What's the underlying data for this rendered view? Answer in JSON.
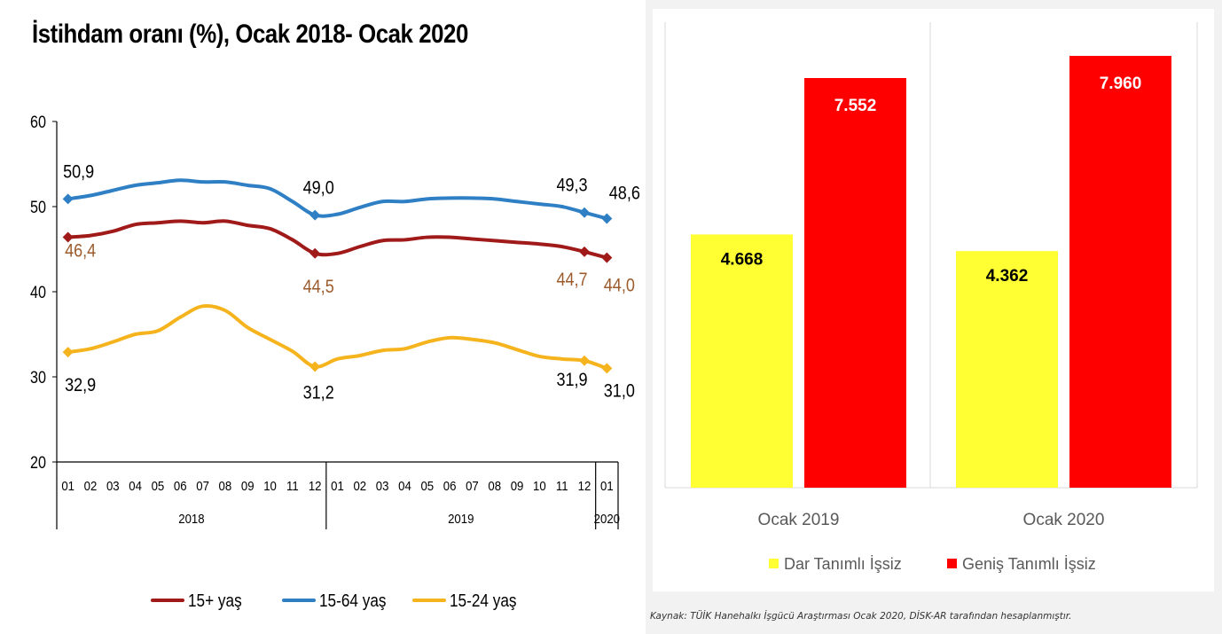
{
  "chart_data": [
    {
      "type": "line",
      "title": "İstihdam oranı (%), Ocak 2018- Ocak 2020",
      "ylim": [
        20,
        60
      ],
      "yticks": [
        "20",
        "30",
        "40",
        "50",
        "60"
      ],
      "x": [
        "01",
        "02",
        "03",
        "04",
        "05",
        "06",
        "07",
        "08",
        "09",
        "10",
        "11",
        "12",
        "01",
        "02",
        "03",
        "04",
        "05",
        "06",
        "07",
        "08",
        "09",
        "10",
        "11",
        "12",
        "01"
      ],
      "year_groups": [
        {
          "label": "2018"
        },
        {
          "label": "2019"
        },
        {
          "label": "2020"
        }
      ],
      "grid": false,
      "legend_position": "bottom",
      "series": [
        {
          "name": "15+ yaş",
          "color": "#a01a1a",
          "label_color": "#9c5b2c",
          "values": [
            46.4,
            46.6,
            47.1,
            47.9,
            48.1,
            48.3,
            48.1,
            48.3,
            47.8,
            47.4,
            46.1,
            44.5,
            44.5,
            45.3,
            46.0,
            46.1,
            46.4,
            46.4,
            46.2,
            46.0,
            45.8,
            45.6,
            45.3,
            44.7,
            44.0
          ],
          "labels": [
            {
              "index": 0,
              "text": "46,4"
            },
            {
              "index": 11,
              "text": "44,5"
            },
            {
              "index": 23,
              "text": "44,7"
            },
            {
              "index": 24,
              "text": "44,0"
            }
          ]
        },
        {
          "name": "15-64 yaş",
          "color": "#2e7fc4",
          "label_color": "#000000",
          "values": [
            50.9,
            51.3,
            51.9,
            52.5,
            52.8,
            53.1,
            52.9,
            52.9,
            52.5,
            52.1,
            50.6,
            49.0,
            49.1,
            49.9,
            50.6,
            50.6,
            50.9,
            51.0,
            51.0,
            50.9,
            50.6,
            50.3,
            50.0,
            49.3,
            48.6
          ],
          "labels": [
            {
              "index": 0,
              "text": "50,9"
            },
            {
              "index": 11,
              "text": "49,0"
            },
            {
              "index": 23,
              "text": "49,3"
            },
            {
              "index": 24,
              "text": "48,6"
            }
          ]
        },
        {
          "name": "15-24 yaş",
          "color": "#f5b41d",
          "label_color": "#000000",
          "values": [
            32.9,
            33.3,
            34.1,
            35.0,
            35.4,
            37.0,
            38.3,
            37.8,
            35.8,
            34.4,
            33.0,
            31.2,
            32.1,
            32.5,
            33.1,
            33.3,
            34.1,
            34.6,
            34.4,
            34.0,
            33.2,
            32.4,
            32.1,
            31.9,
            31.0
          ],
          "labels": [
            {
              "index": 0,
              "text": "32,9"
            },
            {
              "index": 11,
              "text": "31,2"
            },
            {
              "index": 23,
              "text": "31,9"
            },
            {
              "index": 24,
              "text": "31,0"
            }
          ]
        }
      ]
    },
    {
      "type": "bar",
      "categories": [
        "Ocak 2019",
        "Ocak 2020"
      ],
      "ylim": [
        0,
        8500
      ],
      "grid": false,
      "legend_position": "bottom",
      "series": [
        {
          "name": "Dar Tanımlı İşsiz",
          "color": "#ffff33",
          "values": [
            4668,
            4362
          ],
          "labels": [
            "4.668",
            "4.362"
          ]
        },
        {
          "name": "Geniş Tanımlı İşsiz",
          "color": "#ff0000",
          "values": [
            7552,
            7960
          ],
          "labels": [
            "7.552",
            "7.960"
          ]
        }
      ]
    }
  ],
  "source_note": "Kaynak: TÜİK Hanehalkı İşgücü Araştırması Ocak 2020, DİSK-AR tarafından hesaplanmıştır."
}
